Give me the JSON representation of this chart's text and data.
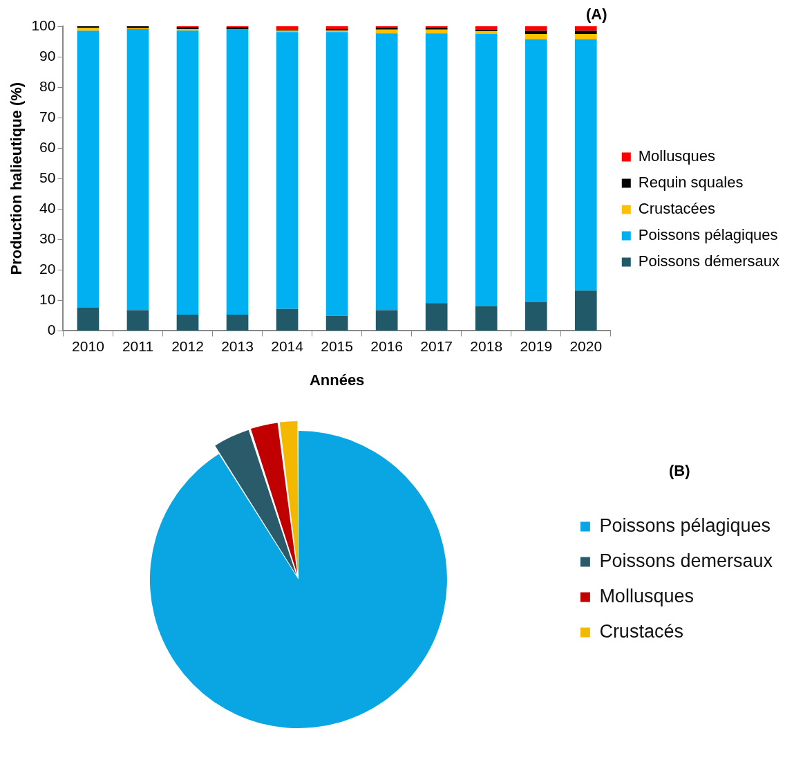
{
  "chart_data": [
    {
      "type": "bar",
      "title": "(A)",
      "xlabel": "Années",
      "ylabel": "Production halieutique (%)",
      "stacked": true,
      "categories": [
        "2010",
        "2011",
        "2012",
        "2013",
        "2014",
        "2015",
        "2016",
        "2017",
        "2018",
        "2019",
        "2020"
      ],
      "series": [
        {
          "name": "Poissons démersaux",
          "color": "#215968",
          "values": [
            7.6,
            6.8,
            5.3,
            5.3,
            7.2,
            4.9,
            6.8,
            9.1,
            8.1,
            9.5,
            13.2
          ]
        },
        {
          "name": "Poissons pélagiques",
          "color": "#00b0f0",
          "values": [
            90.9,
            92.3,
            93.3,
            93.8,
            90.9,
            93.2,
            90.9,
            88.6,
            89.4,
            86.2,
            82.5
          ]
        },
        {
          "name": "Crustacées",
          "color": "#ffc000",
          "values": [
            1.0,
            0.3,
            0.5,
            0,
            0.5,
            0.5,
            1.2,
            1.2,
            0.9,
            1.8,
            1.8
          ]
        },
        {
          "name": "Requin squales",
          "color": "#000000",
          "values": [
            0.5,
            0.6,
            0.6,
            0.6,
            0.3,
            0.5,
            0.6,
            0.6,
            0.5,
            1.0,
            1.0
          ]
        },
        {
          "name": "Mollusques",
          "color": "#ff0000",
          "values": [
            0,
            0,
            0.3,
            0.3,
            1.1,
            0.9,
            0.5,
            0.5,
            1.1,
            1.5,
            1.5
          ]
        }
      ],
      "ylim": [
        0,
        100
      ],
      "yticks": [
        0,
        10,
        20,
        30,
        40,
        50,
        60,
        70,
        80,
        90,
        100
      ],
      "grid": false,
      "legend": "right"
    },
    {
      "type": "pie",
      "title": "(B)",
      "categories": [
        "Poissons pélagiques",
        "Poissons demersaux",
        "Mollusques",
        "Crustacés"
      ],
      "values": [
        91,
        4,
        3,
        2
      ],
      "colors": [
        "#0aa5e3",
        "#2a5b6a",
        "#c00000",
        "#f5b800"
      ],
      "legend": "right"
    }
  ]
}
